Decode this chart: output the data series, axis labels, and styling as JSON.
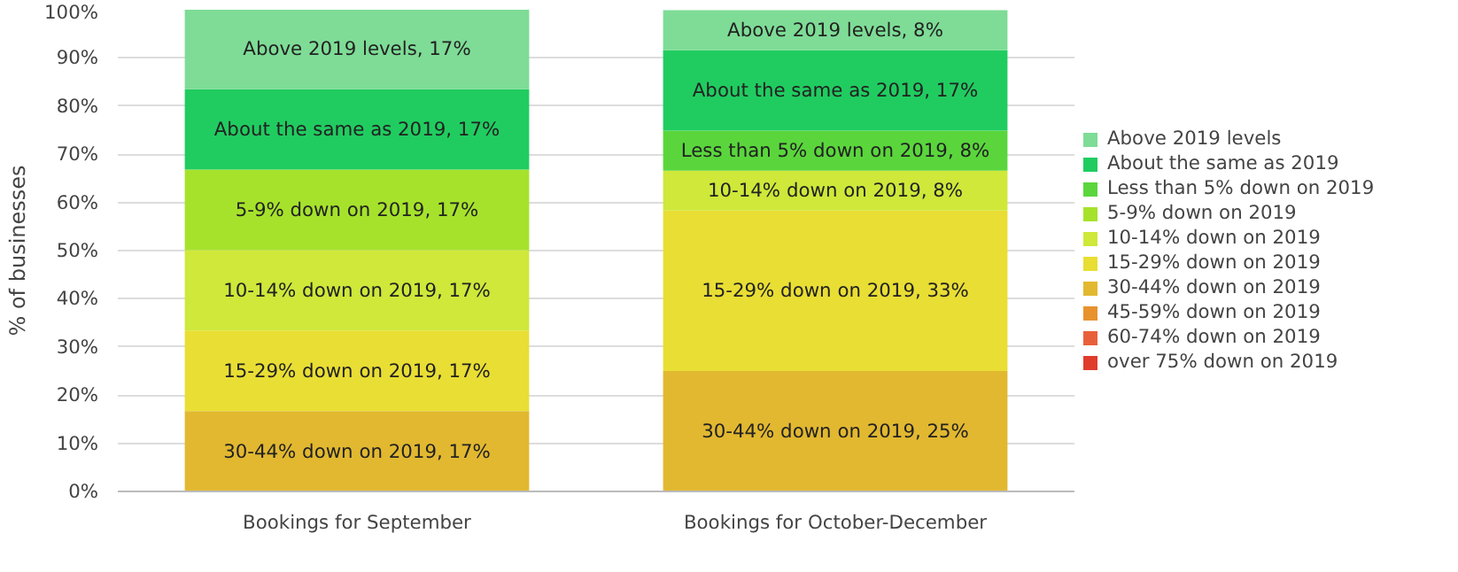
{
  "chart_data": {
    "type": "bar",
    "stacked": true,
    "ylabel": "% of businesses",
    "categories": [
      "Bookings for September",
      "Bookings for October-December"
    ],
    "ylim": [
      0,
      100
    ],
    "yticks": [
      {
        "value": 0,
        "label": "0%"
      },
      {
        "value": 10,
        "label": "10%"
      },
      {
        "value": 20,
        "label": "20%"
      },
      {
        "value": 30,
        "label": "30%"
      },
      {
        "value": 40,
        "label": "40%"
      },
      {
        "value": 50,
        "label": "50%"
      },
      {
        "value": 60,
        "label": "60%"
      },
      {
        "value": 70,
        "label": "70%"
      },
      {
        "value": 80,
        "label": "80%"
      },
      {
        "value": 90,
        "label": "90%"
      },
      {
        "value": 100,
        "label": "100%"
      }
    ],
    "grid": "y",
    "legend": "right",
    "series": [
      {
        "name": "over 75% down on 2019",
        "color": "#e03c2c",
        "values": [
          0,
          0
        ],
        "value_labels": [
          null,
          null
        ]
      },
      {
        "name": "60-74% down on 2019",
        "color": "#e8603a",
        "values": [
          0,
          0
        ],
        "value_labels": [
          null,
          null
        ]
      },
      {
        "name": "45-59% down on 2019",
        "color": "#e8922e",
        "values": [
          0,
          0
        ],
        "value_labels": [
          null,
          null
        ]
      },
      {
        "name": "30-44% down on 2019",
        "color": "#e2b830",
        "values": [
          16.7,
          25
        ],
        "value_labels": [
          "30-44% down on 2019, 17%",
          "30-44% down on 2019, 25%"
        ]
      },
      {
        "name": "15-29% down on 2019",
        "color": "#e9de34",
        "values": [
          16.7,
          33.3
        ],
        "value_labels": [
          "15-29% down on 2019, 17%",
          "15-29% down on 2019, 33%"
        ]
      },
      {
        "name": "10-14% down on 2019",
        "color": "#cfe83a",
        "values": [
          16.7,
          8.3
        ],
        "value_labels": [
          "10-14% down on 2019, 17%",
          "10-14% down on 2019, 8%"
        ]
      },
      {
        "name": "5-9% down on 2019",
        "color": "#a6e22c",
        "values": [
          16.7,
          0
        ],
        "value_labels": [
          "5-9% down on 2019, 17%",
          null
        ]
      },
      {
        "name": "Less than 5% down on 2019",
        "color": "#5ad63c",
        "values": [
          0,
          8.3
        ],
        "value_labels": [
          null,
          "Less than 5% down on 2019, 8%"
        ]
      },
      {
        "name": "About the same as 2019",
        "color": "#20cc60",
        "values": [
          16.7,
          16.7
        ],
        "value_labels": [
          "About the same as 2019, 17%",
          "About the same as 2019, 17%"
        ]
      },
      {
        "name": "Above 2019 levels",
        "color": "#7edc96",
        "values": [
          16.7,
          8.3
        ],
        "value_labels": [
          "Above 2019 levels, 17%",
          "Above 2019 levels, 8%"
        ]
      }
    ]
  }
}
